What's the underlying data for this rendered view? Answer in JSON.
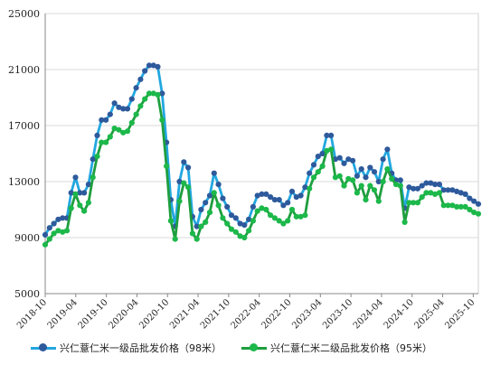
{
  "chart_data": {
    "type": "line",
    "title": "",
    "xlabel": "",
    "ylabel": "",
    "ylim": [
      5000,
      25000
    ],
    "yticks": [
      "5000",
      "9000",
      "13000",
      "17000",
      "21000",
      "25000"
    ],
    "xticks": [
      "2018-10",
      "2019-04",
      "2019-10",
      "2020-04",
      "2020-10",
      "2021-04",
      "2021-10",
      "2022-04",
      "2022-10",
      "2023-04",
      "2023-10",
      "2024-04",
      "2024-10",
      "2025-04",
      "2025-10"
    ],
    "x_start": "2018-10",
    "grid": true,
    "legend_position": "bottom",
    "series": [
      {
        "name": "兴仁薏仁米一级品批发价格（98米）",
        "line_color": "#22a7e0",
        "marker_color": "#2e5a9c",
        "values": [
          9200,
          9700,
          10000,
          10300,
          10400,
          10400,
          12200,
          13300,
          12200,
          12200,
          12800,
          14600,
          16300,
          17400,
          17400,
          17800,
          18600,
          18300,
          18200,
          18200,
          18900,
          19700,
          20300,
          20900,
          21300,
          21300,
          21200,
          19300,
          15800,
          11700,
          9800,
          13000,
          14400,
          14000,
          10500,
          9800,
          11000,
          11500,
          12000,
          13600,
          12800,
          11800,
          11200,
          10600,
          10400,
          10000,
          9900,
          10300,
          11200,
          12000,
          12100,
          12100,
          11900,
          11700,
          11700,
          11300,
          11500,
          12300,
          11900,
          12000,
          12600,
          13600,
          14200,
          14800,
          15000,
          16300,
          16300,
          14600,
          14700,
          14300,
          14600,
          14500,
          13400,
          13900,
          13300,
          14000,
          13700,
          13000,
          14600,
          15300,
          13600,
          13100,
          13100,
          11100,
          12600,
          12500,
          12500,
          12700,
          12900,
          12900,
          12800,
          12800,
          12400,
          12400,
          12400,
          12300,
          12200,
          12100,
          11800,
          11600,
          11400
        ]
      },
      {
        "name": "兴仁薏仁米二级品批发价格（95米）",
        "line_color": "#1e9e3e",
        "marker_color": "#1cb84a",
        "values": [
          8500,
          8900,
          9300,
          9500,
          9400,
          9500,
          11100,
          12100,
          11300,
          10900,
          11500,
          13300,
          14800,
          15800,
          15800,
          16200,
          16800,
          16700,
          16500,
          16600,
          17200,
          17800,
          18400,
          18900,
          19300,
          19300,
          19200,
          17400,
          14100,
          10200,
          8900,
          11600,
          12900,
          12600,
          9300,
          8900,
          9800,
          10100,
          10800,
          12200,
          11300,
          10400,
          10000,
          9600,
          9400,
          9100,
          9000,
          9500,
          10200,
          10900,
          11100,
          11000,
          10600,
          10400,
          10200,
          10000,
          10200,
          11000,
          10500,
          10500,
          10600,
          12500,
          13300,
          13700,
          14100,
          15200,
          15300,
          13300,
          13400,
          12700,
          13200,
          13100,
          12200,
          12700,
          11700,
          12700,
          12400,
          11600,
          13000,
          13900,
          13200,
          12800,
          12700,
          10100,
          11500,
          11500,
          11500,
          11900,
          12200,
          12200,
          12100,
          12200,
          11300,
          11300,
          11300,
          11200,
          11200,
          11200,
          11000,
          10800,
          10700
        ]
      }
    ]
  }
}
